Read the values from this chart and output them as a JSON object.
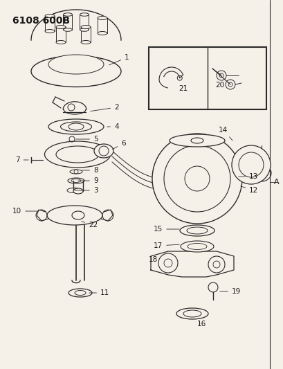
{
  "title": "6108 600B",
  "background_color": "#f5f0e8",
  "line_color": "#2a2a2a",
  "label_color": "#1a1a1a",
  "label_fontsize": 7.5
}
